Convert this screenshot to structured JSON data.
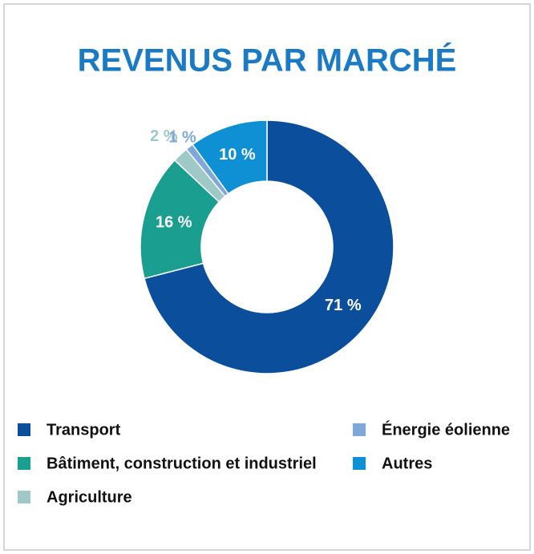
{
  "chart_data": {
    "type": "donut",
    "title": "REVENUS PAR MARCHÉ",
    "categories": [
      "Transport",
      "Bâtiment, construction et industriel",
      "Agriculture",
      "Énergie éolienne",
      "Autres"
    ],
    "values": [
      71,
      16,
      2,
      1,
      10
    ],
    "value_labels": [
      "71 %",
      "16 %",
      "2 %",
      "1 %",
      "10 %"
    ],
    "colors": [
      "#0b4f9c",
      "#1a9e8f",
      "#9fc9c6",
      "#7fa8d9",
      "#0f8fd4"
    ]
  }
}
